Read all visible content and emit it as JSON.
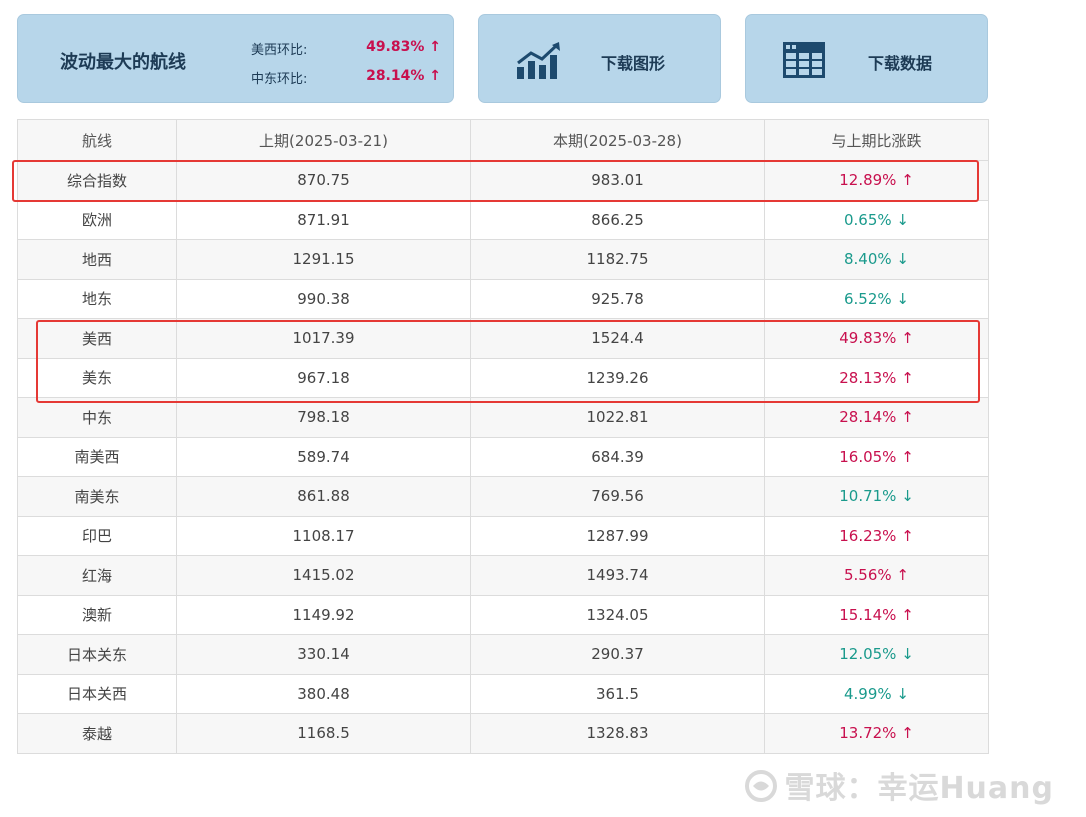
{
  "summary": {
    "title": "波动最大的航线",
    "rows": [
      {
        "label": "美西环比:",
        "value": "49.83% ↑"
      },
      {
        "label": "中东环比:",
        "value": "28.14% ↑"
      }
    ]
  },
  "buttons": {
    "chart_label": "下载图形",
    "data_label": "下载数据"
  },
  "table": {
    "headers": [
      "航线",
      "上期(2025-03-21)",
      "本期(2025-03-28)",
      "与上期比涨跌"
    ],
    "rows": [
      {
        "route": "综合指数",
        "prev": "870.75",
        "curr": "983.01",
        "change": "12.89% ↑",
        "dir": "up"
      },
      {
        "route": "欧洲",
        "prev": "871.91",
        "curr": "866.25",
        "change": "0.65% ↓",
        "dir": "down"
      },
      {
        "route": "地西",
        "prev": "1291.15",
        "curr": "1182.75",
        "change": "8.40% ↓",
        "dir": "down"
      },
      {
        "route": "地东",
        "prev": "990.38",
        "curr": "925.78",
        "change": "6.52% ↓",
        "dir": "down"
      },
      {
        "route": "美西",
        "prev": "1017.39",
        "curr": "1524.4",
        "change": "49.83% ↑",
        "dir": "up"
      },
      {
        "route": "美东",
        "prev": "967.18",
        "curr": "1239.26",
        "change": "28.13% ↑",
        "dir": "up"
      },
      {
        "route": "中东",
        "prev": "798.18",
        "curr": "1022.81",
        "change": "28.14% ↑",
        "dir": "up"
      },
      {
        "route": "南美西",
        "prev": "589.74",
        "curr": "684.39",
        "change": "16.05% ↑",
        "dir": "up"
      },
      {
        "route": "南美东",
        "prev": "861.88",
        "curr": "769.56",
        "change": "10.71% ↓",
        "dir": "down"
      },
      {
        "route": "印巴",
        "prev": "1108.17",
        "curr": "1287.99",
        "change": "16.23% ↑",
        "dir": "up"
      },
      {
        "route": "红海",
        "prev": "1415.02",
        "curr": "1493.74",
        "change": "5.56% ↑",
        "dir": "up"
      },
      {
        "route": "澳新",
        "prev": "1149.92",
        "curr": "1324.05",
        "change": "15.14% ↑",
        "dir": "up"
      },
      {
        "route": "日本关东",
        "prev": "330.14",
        "curr": "290.37",
        "change": "12.05% ↓",
        "dir": "down"
      },
      {
        "route": "日本关西",
        "prev": "380.48",
        "curr": "361.5",
        "change": "4.99% ↓",
        "dir": "down"
      },
      {
        "route": "泰越",
        "prev": "1168.5",
        "curr": "1328.83",
        "change": "13.72% ↑",
        "dir": "up"
      }
    ]
  },
  "watermark": "雪球：幸运Huang",
  "colors": {
    "up": "#c8104e",
    "down": "#1a9a8c",
    "card_bg": "#b7d6ea",
    "highlight": "#e53935"
  }
}
